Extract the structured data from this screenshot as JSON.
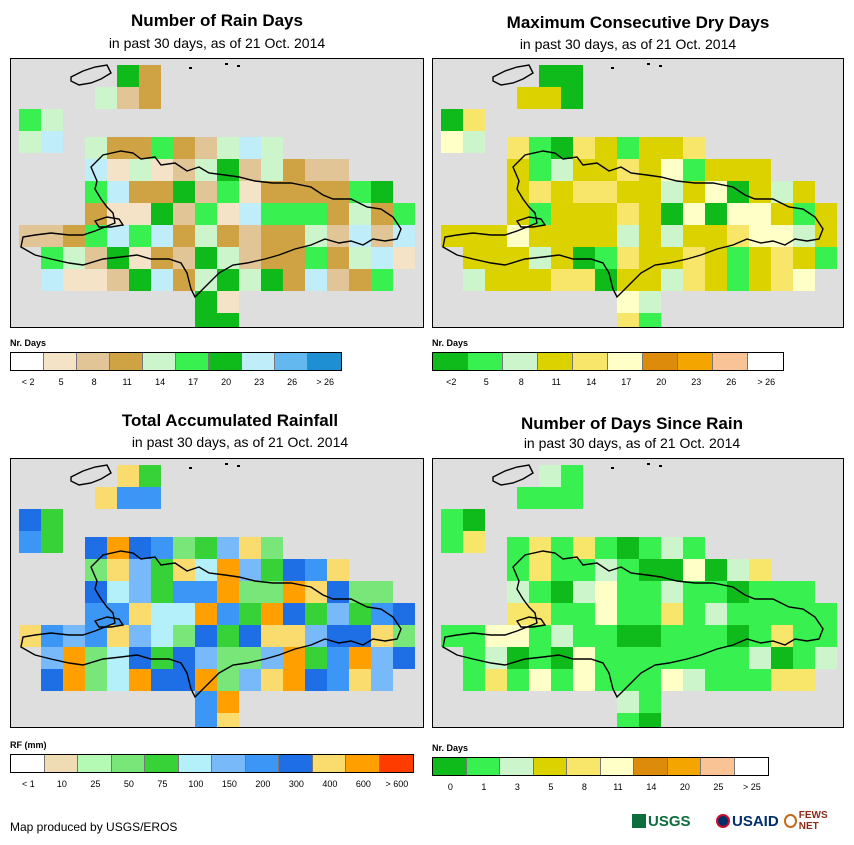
{
  "panels": [
    {
      "title": "Number of Rain Days",
      "subtitle": "in past 30 days, as of 21 Oct. 2014",
      "legend": {
        "title": "Nr. Days",
        "labels": [
          "< 2",
          "5",
          "8",
          "11",
          "14",
          "17",
          "20",
          "23",
          "26",
          "> 26"
        ],
        "colors": [
          "#ffffff",
          "#f5e3c8",
          "#e2c596",
          "#cfa243",
          "#ccf5cc",
          "#38f050",
          "#0fbb1a",
          "#bfeefa",
          "#63b8f0",
          "#1f8fd4"
        ]
      },
      "map": {
        "default": "#cfa243",
        "rows": [
          [
            "-",
            "-",
            "-",
            "-",
            "-",
            "-",
            "-",
            "-",
            "-",
            "-",
            "-",
            "-",
            "-",
            "-",
            "-",
            "-",
            "-",
            "-",
            "-",
            "-"
          ],
          [
            "-",
            "-",
            "-",
            "-",
            "-",
            "-",
            "-",
            "-",
            "-",
            "-",
            "-",
            "-",
            "-",
            "-",
            "-",
            "-",
            "-",
            "-",
            "-",
            "-"
          ],
          [
            "-",
            "-",
            "-",
            "-",
            "-",
            "-",
            "-",
            "-",
            "-",
            "-",
            "-",
            "-",
            "-",
            "-",
            "-",
            "-",
            "-",
            "-",
            "-",
            "-"
          ],
          [
            "-",
            "-",
            "-",
            "-",
            "-",
            "-",
            "-",
            "-",
            "-",
            "-",
            "-",
            "-",
            "-",
            "-",
            "-",
            "-",
            "-",
            "-",
            "-",
            "-"
          ],
          [
            "-",
            "-",
            "-",
            "-",
            "-",
            "-",
            "-",
            "-",
            "-",
            "-",
            "-",
            "-",
            "-",
            "-",
            "-",
            "-",
            "-",
            "-",
            "-",
            "-"
          ],
          [
            "-",
            "-",
            "-",
            "-",
            "-",
            "-",
            "-",
            "-",
            "-",
            "-",
            "-",
            "-",
            "-",
            "-",
            "-",
            "-",
            "-",
            "-",
            "-",
            "-"
          ],
          [
            "-",
            "-",
            "-",
            "-",
            "-",
            "-",
            "-",
            "-",
            "-",
            "-",
            "-",
            "-",
            "-",
            "-",
            "-",
            "-",
            "-",
            "-",
            "-",
            "-"
          ],
          [
            "-",
            "-",
            "-",
            "-",
            "-",
            "-",
            "-",
            "-",
            "-",
            "-",
            "-",
            "-",
            "-",
            "-",
            "-",
            "-",
            "-",
            "-",
            "-",
            "-"
          ],
          [
            "-",
            "-",
            "-",
            "-",
            "-",
            "-",
            "-",
            "-",
            "-",
            "-",
            "-",
            "-",
            "-",
            "-",
            "-",
            "-",
            "-",
            "-",
            "-",
            "-"
          ],
          [
            "-",
            "-",
            "-",
            "-",
            "-",
            "-",
            "-",
            "-",
            "-",
            "-",
            "-",
            "-",
            "-",
            "-",
            "-",
            "-",
            "-",
            "-",
            "-",
            "-"
          ],
          [
            "-",
            "-",
            "-",
            "-",
            "-",
            "-",
            "-",
            "-",
            "-",
            "-",
            "-",
            "-",
            "-",
            "-",
            "-",
            "-",
            "-",
            "-",
            "-",
            "-"
          ],
          [
            "-",
            "-",
            "-",
            "-",
            "-",
            "-",
            "-",
            "-",
            "-",
            "-",
            "-",
            "-",
            "-",
            "-",
            "-",
            "-",
            "-",
            "-",
            "-",
            "-"
          ],
          [
            "-",
            "-",
            "-",
            "-",
            "-",
            "-",
            "-",
            "-",
            "-",
            "-",
            "-",
            "-",
            "-",
            "-",
            "-",
            "-",
            "-",
            "-",
            "-",
            "-"
          ],
          [
            "-",
            "-",
            "-",
            "-",
            "-",
            "-",
            "-",
            "-",
            "-",
            "-",
            "-",
            "-",
            "-",
            "-",
            "-",
            "-",
            "-",
            "-",
            "-",
            "-"
          ],
          [
            "-",
            "-",
            "-",
            "-",
            "-",
            "-",
            "-",
            "-",
            "-",
            "-",
            "-",
            "-",
            "-",
            "-",
            "-",
            "-",
            "-",
            "-",
            "-",
            "-"
          ],
          [
            "-",
            "-",
            "-",
            "-",
            "-",
            "-",
            "-",
            "-",
            "-",
            "-",
            "-",
            "-",
            "-",
            "-",
            "-",
            "-",
            "-",
            "-",
            "-",
            "-"
          ],
          [
            "-",
            "-",
            "-",
            "-",
            "-",
            "-",
            "-",
            "-",
            "-",
            "-",
            "-",
            "-",
            "-",
            "-",
            "-",
            "-",
            "-",
            "-",
            "-",
            "-"
          ],
          [
            "-",
            "-",
            "-",
            "-",
            "-",
            "-",
            "-",
            "-",
            "-",
            "-",
            "-",
            "-",
            "-",
            "-",
            "-",
            "-",
            "-",
            "-",
            "-",
            "-"
          ]
        ]
      }
    },
    {
      "title": "Maximum Consecutive Dry Days",
      "subtitle": "in past 30 days, as of 21 Oct. 2014",
      "legend": {
        "title": "Nr. Days",
        "labels": [
          "<2",
          "5",
          "8",
          "11",
          "14",
          "17",
          "20",
          "23",
          "26",
          "> 26"
        ],
        "colors": [
          "#0fbb1a",
          "#38f050",
          "#ccf5cc",
          "#dcd200",
          "#f8e66a",
          "#ffffc8",
          "#dc8c0a",
          "#f5a500",
          "#fac396",
          "#ffffff"
        ]
      }
    },
    {
      "title": "Total Accumulated Rainfall",
      "subtitle": "in past 30 days, as of 21 Oct. 2014",
      "legend": {
        "title": "RF (mm)",
        "labels": [
          "< 1",
          "10",
          "25",
          "50",
          "75",
          "100",
          "150",
          "200",
          "300",
          "400",
          "600",
          "> 600"
        ],
        "colors": [
          "#ffffff",
          "#f0dcb4",
          "#b4fab4",
          "#78e678",
          "#37d237",
          "#b4f0fa",
          "#78b9fa",
          "#3c96f5",
          "#1e6ee6",
          "#fadc6e",
          "#ffa000",
          "#ff3c00"
        ]
      }
    },
    {
      "title": "Number of Days Since Rain",
      "subtitle": "in past 30 days, as of 21 Oct. 2014",
      "legend": {
        "title": "Nr. Days",
        "labels": [
          "0",
          "1",
          "3",
          "5",
          "8",
          "11",
          "14",
          "20",
          "25",
          "> 25"
        ],
        "colors": [
          "#0fbb1a",
          "#38f050",
          "#ccf5cc",
          "#dcd200",
          "#f8e66a",
          "#ffffc8",
          "#dc8c0a",
          "#f5a500",
          "#fac396",
          "#ffffff"
        ]
      }
    }
  ],
  "footer": {
    "credit": "Map produced by USGS/EROS",
    "logos": [
      "USGS",
      "USAID",
      "FEWS NET"
    ]
  }
}
